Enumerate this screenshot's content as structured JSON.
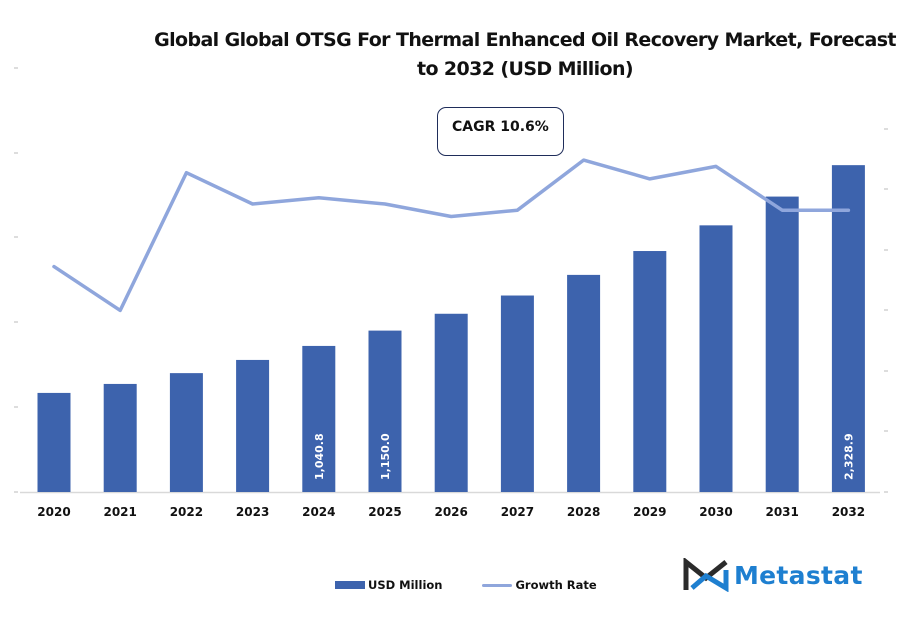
{
  "chart_data": {
    "type": "bar",
    "title": "Global Global OTSG For Thermal Enhanced Oil Recovery Market, Forecast to 2032 (USD Million)",
    "xlabel": "",
    "ylabel": "",
    "categories": [
      "2020",
      "2021",
      "2022",
      "2023",
      "2024",
      "2025",
      "2026",
      "2027",
      "2028",
      "2029",
      "2030",
      "2031",
      "2032"
    ],
    "series": [
      {
        "name": "USD Million",
        "type": "bar",
        "axis": "left",
        "color": "#3d63ad",
        "values": [
          706,
          770,
          847,
          941,
          1040.8,
          1150.0,
          1270,
          1400,
          1547,
          1717,
          1900,
          2105,
          2328.9
        ],
        "data_labels": {
          "4": "1,040.8",
          "5": "1,150.0",
          "12": "2,328.9"
        }
      },
      {
        "name": "Growth Rate",
        "type": "line",
        "axis": "right",
        "color": "#8fa6dc",
        "values": [
          9.6,
          8.9,
          11.1,
          10.6,
          10.7,
          10.6,
          10.4,
          10.5,
          11.3,
          11.0,
          11.2,
          10.5,
          10.5
        ]
      }
    ],
    "ylim": [
      0,
      2900
    ],
    "ylim_right": [
      6.0,
      12.5
    ],
    "grid": false,
    "legend": "bottom-center",
    "annotation": "CAGR 10.6%"
  },
  "legend": {
    "items": [
      {
        "label": "USD Million"
      },
      {
        "label": "Growth Rate"
      }
    ]
  },
  "annotation": {
    "cagr": "CAGR 10.6%"
  },
  "brand": {
    "name": "Metastat",
    "color": "#1e7fd0"
  }
}
